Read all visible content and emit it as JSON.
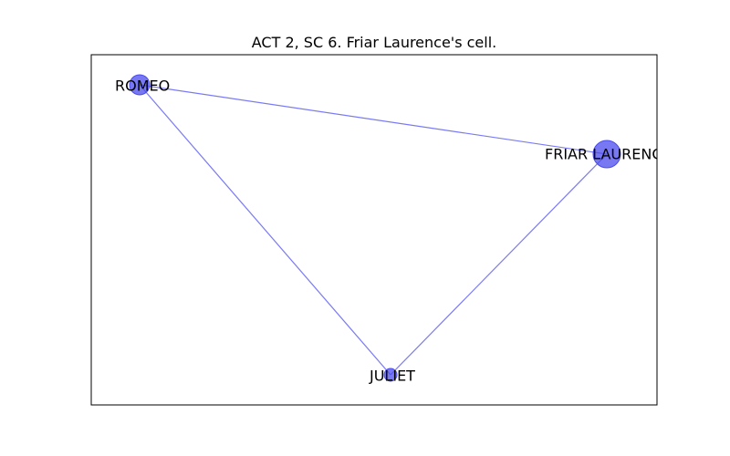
{
  "title": "ACT 2, SC 6. Friar Laurence's cell.",
  "colors": {
    "node": "#4b4bef",
    "edge": "#7a7af5",
    "frame": "#000000"
  },
  "nodes": [
    {
      "id": "romeo",
      "label": "ROMEO",
      "weight": 2
    },
    {
      "id": "friar",
      "label": "FRIAR LAURENCE",
      "weight": 3
    },
    {
      "id": "juliet",
      "label": "JULIET",
      "weight": 1
    }
  ],
  "edges": [
    {
      "source": "romeo",
      "target": "friar"
    },
    {
      "source": "romeo",
      "target": "juliet"
    },
    {
      "source": "friar",
      "target": "juliet"
    }
  ]
}
